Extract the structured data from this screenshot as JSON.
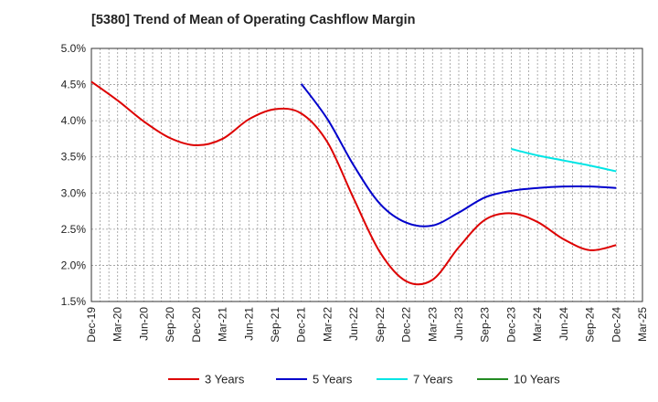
{
  "chart_data": {
    "type": "line",
    "title": "[5380]  Trend of Mean of Operating Cashflow Margin",
    "xlabel": "",
    "ylabel": "",
    "x_ticks": [
      "Dec-19",
      "Mar-20",
      "Jun-20",
      "Sep-20",
      "Dec-20",
      "Mar-21",
      "Jun-21",
      "Sep-21",
      "Dec-21",
      "Mar-22",
      "Jun-22",
      "Sep-22",
      "Dec-22",
      "Mar-23",
      "Jun-23",
      "Sep-23",
      "Dec-23",
      "Mar-24",
      "Jun-24",
      "Sep-24",
      "Dec-24",
      "Mar-25"
    ],
    "y_ticks": [
      "5.0%",
      "4.5%",
      "4.0%",
      "3.5%",
      "3.0%",
      "2.5%",
      "2.0%",
      "1.5%"
    ],
    "ylim": [
      1.5,
      5.0
    ],
    "grid": true,
    "legend_position": "bottom",
    "series": [
      {
        "name": "3 Years",
        "color": "#dd0000",
        "x": [
          "Dec-19",
          "Mar-20",
          "Jun-20",
          "Sep-20",
          "Dec-20",
          "Mar-21",
          "Jun-21",
          "Sep-21",
          "Dec-21",
          "Mar-22",
          "Jun-22",
          "Sep-22",
          "Dec-22",
          "Mar-23",
          "Jun-23",
          "Sep-23",
          "Dec-23",
          "Mar-24",
          "Jun-24",
          "Sep-24",
          "Dec-24"
        ],
        "values": [
          4.54,
          4.28,
          3.99,
          3.76,
          3.66,
          3.75,
          4.02,
          4.16,
          4.1,
          3.7,
          2.92,
          2.18,
          1.78,
          1.8,
          2.25,
          2.63,
          2.72,
          2.6,
          2.36,
          2.21,
          2.28
        ]
      },
      {
        "name": "5 Years",
        "color": "#0000cc",
        "x": [
          "Dec-21",
          "Mar-22",
          "Jun-22",
          "Sep-22",
          "Dec-22",
          "Mar-23",
          "Jun-23",
          "Sep-23",
          "Dec-23",
          "Mar-24",
          "Jun-24",
          "Sep-24",
          "Dec-24"
        ],
        "values": [
          4.51,
          4.02,
          3.38,
          2.85,
          2.59,
          2.55,
          2.73,
          2.94,
          3.03,
          3.07,
          3.09,
          3.09,
          3.07
        ]
      },
      {
        "name": "7 Years",
        "color": "#00e5e5",
        "x": [
          "Dec-23",
          "Mar-24",
          "Jun-24",
          "Sep-24",
          "Dec-24"
        ],
        "values": [
          3.61,
          3.52,
          3.45,
          3.38,
          3.3
        ]
      },
      {
        "name": "10 Years",
        "color": "#228b22",
        "x": [],
        "values": []
      }
    ]
  }
}
